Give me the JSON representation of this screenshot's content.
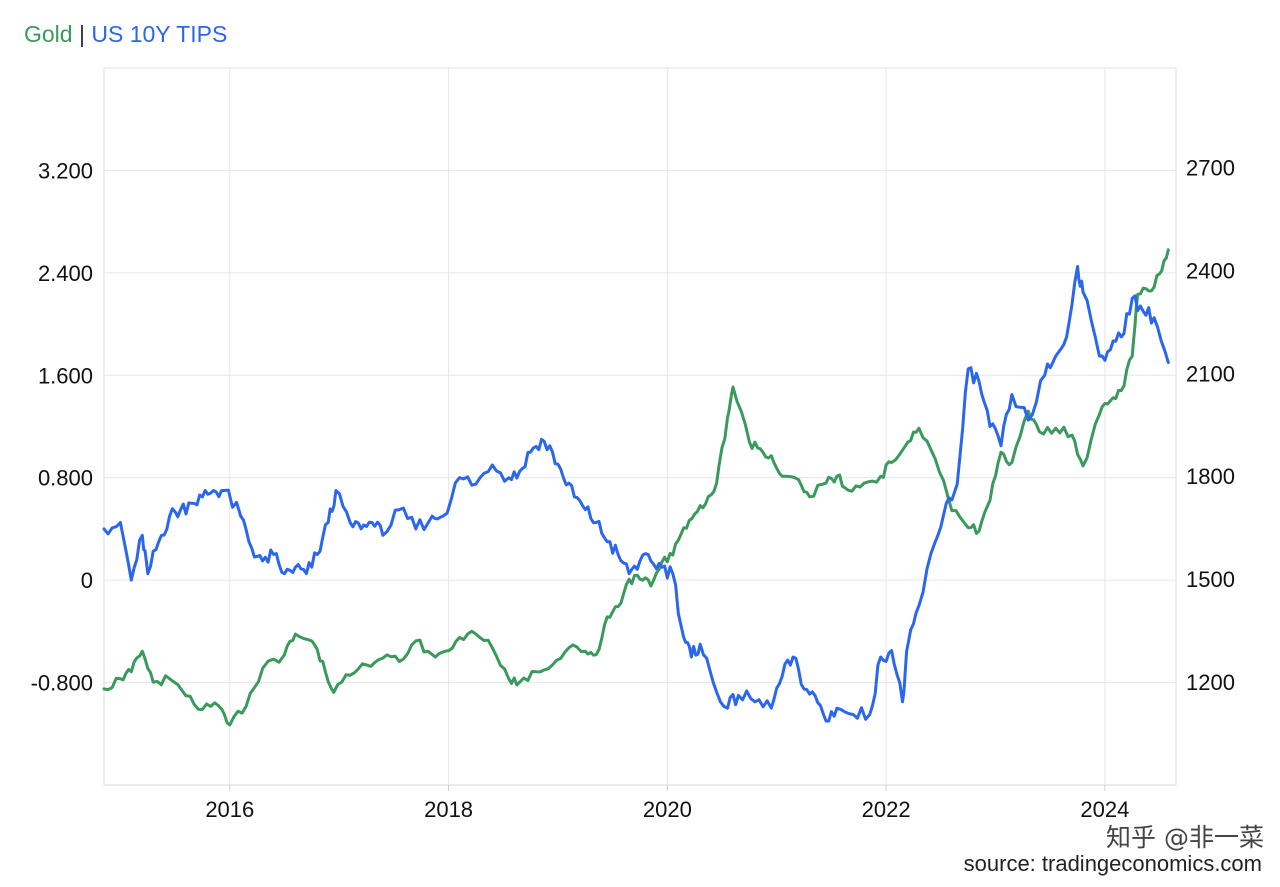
{
  "chart_data": {
    "type": "line",
    "title": "",
    "legend": [
      "Gold",
      "US 10Y TIPS"
    ],
    "colors": {
      "Gold": "#3a9a5b",
      "US 10Y TIPS": "#2b66ee",
      "grid": "#e6e6e6",
      "axis_text": "#111111"
    },
    "x_ticks": [
      "2016",
      "2018",
      "2020",
      "2022",
      "2024"
    ],
    "xlim": [
      2014.85,
      2024.65
    ],
    "left_axis": {
      "series": "US 10Y TIPS",
      "ticks": [
        "3.200",
        "2.400",
        "1.600",
        "0.800",
        "0",
        "-0.800"
      ],
      "ylim": [
        -1.6,
        4.0
      ]
    },
    "right_axis": {
      "series": "Gold",
      "ticks": [
        "2700",
        "2400",
        "2100",
        "1800",
        "1500",
        "1200"
      ],
      "ylim": [
        900,
        2990
      ]
    },
    "grid": true,
    "series": [
      {
        "name": "Gold",
        "axis": "right",
        "x": [
          2014.85,
          2015.0,
          2015.1,
          2015.2,
          2015.3,
          2015.45,
          2015.6,
          2015.75,
          2015.9,
          2016.0,
          2016.15,
          2016.3,
          2016.5,
          2016.6,
          2016.75,
          2016.85,
          2016.95,
          2017.1,
          2017.25,
          2017.4,
          2017.55,
          2017.7,
          2017.85,
          2017.97,
          2018.1,
          2018.25,
          2018.4,
          2018.55,
          2018.65,
          2018.8,
          2018.95,
          2019.1,
          2019.25,
          2019.35,
          2019.45,
          2019.55,
          2019.65,
          2019.75,
          2019.85,
          2019.95,
          2020.05,
          2020.15,
          2020.25,
          2020.35,
          2020.45,
          2020.55,
          2020.6,
          2020.75,
          2020.85,
          2020.95,
          2021.05,
          2021.2,
          2021.3,
          2021.45,
          2021.55,
          2021.65,
          2021.8,
          2021.95,
          2022.05,
          2022.2,
          2022.3,
          2022.45,
          2022.6,
          2022.75,
          2022.85,
          2022.95,
          2023.05,
          2023.15,
          2023.3,
          2023.4,
          2023.55,
          2023.7,
          2023.8,
          2023.95,
          2024.05,
          2024.15,
          2024.25,
          2024.3,
          2024.4,
          2024.5,
          2024.58
        ],
        "values": [
          1180,
          1210,
          1230,
          1290,
          1200,
          1210,
          1160,
          1120,
          1130,
          1075,
          1130,
          1240,
          1280,
          1340,
          1320,
          1260,
          1170,
          1220,
          1250,
          1270,
          1260,
          1320,
          1280,
          1290,
          1330,
          1340,
          1300,
          1210,
          1200,
          1230,
          1250,
          1300,
          1290,
          1280,
          1390,
          1420,
          1500,
          1500,
          1480,
          1550,
          1570,
          1650,
          1690,
          1720,
          1780,
          1970,
          2060,
          1900,
          1880,
          1860,
          1800,
          1790,
          1740,
          1780,
          1800,
          1760,
          1780,
          1800,
          1840,
          1900,
          1940,
          1850,
          1700,
          1650,
          1640,
          1730,
          1870,
          1840,
          1990,
          1930,
          1940,
          1920,
          1830,
          1980,
          2020,
          2050,
          2150,
          2330,
          2340,
          2390,
          2460
        ]
      },
      {
        "name": "US 10Y TIPS",
        "axis": "left",
        "x": [
          2014.85,
          2015.0,
          2015.1,
          2015.2,
          2015.25,
          2015.35,
          2015.45,
          2015.55,
          2015.65,
          2015.75,
          2015.85,
          2015.95,
          2016.1,
          2016.2,
          2016.3,
          2016.4,
          2016.5,
          2016.6,
          2016.7,
          2016.8,
          2016.9,
          2016.97,
          2017.1,
          2017.2,
          2017.3,
          2017.4,
          2017.55,
          2017.7,
          2017.85,
          2017.95,
          2018.1,
          2018.25,
          2018.4,
          2018.55,
          2018.65,
          2018.75,
          2018.85,
          2018.95,
          2019.05,
          2019.15,
          2019.25,
          2019.35,
          2019.45,
          2019.55,
          2019.65,
          2019.75,
          2019.85,
          2019.95,
          2020.05,
          2020.15,
          2020.22,
          2020.3,
          2020.42,
          2020.55,
          2020.65,
          2020.8,
          2020.95,
          2021.05,
          2021.15,
          2021.25,
          2021.35,
          2021.45,
          2021.55,
          2021.7,
          2021.85,
          2021.95,
          2022.05,
          2022.15,
          2022.2,
          2022.3,
          2022.45,
          2022.55,
          2022.65,
          2022.75,
          2022.85,
          2022.95,
          2023.05,
          2023.15,
          2023.3,
          2023.45,
          2023.55,
          2023.65,
          2023.75,
          2023.8,
          2023.95,
          2024.05,
          2024.15,
          2024.25,
          2024.35,
          2024.45,
          2024.58
        ],
        "values": [
          0.4,
          0.45,
          0.0,
          0.35,
          0.05,
          0.3,
          0.5,
          0.55,
          0.6,
          0.65,
          0.7,
          0.7,
          0.5,
          0.25,
          0.15,
          0.2,
          0.05,
          0.1,
          0.05,
          0.2,
          0.45,
          0.7,
          0.45,
          0.4,
          0.45,
          0.35,
          0.55,
          0.4,
          0.5,
          0.5,
          0.8,
          0.75,
          0.9,
          0.8,
          0.85,
          1.0,
          1.1,
          1.0,
          0.8,
          0.65,
          0.55,
          0.45,
          0.3,
          0.2,
          0.05,
          0.15,
          0.15,
          0.1,
          0.05,
          -0.45,
          -0.6,
          -0.5,
          -0.8,
          -1.0,
          -0.9,
          -0.95,
          -1.0,
          -0.75,
          -0.6,
          -0.85,
          -0.9,
          -1.1,
          -1.0,
          -1.05,
          -1.05,
          -0.6,
          -0.55,
          -0.95,
          -0.5,
          -0.2,
          0.3,
          0.6,
          0.75,
          1.65,
          1.55,
          1.2,
          1.05,
          1.45,
          1.25,
          1.6,
          1.75,
          1.9,
          2.45,
          2.25,
          1.75,
          1.8,
          1.9,
          2.2,
          2.1,
          2.05,
          1.7
        ]
      }
    ]
  },
  "watermark": "知乎 @非一菜",
  "source": "source: tradingeconomics.com"
}
